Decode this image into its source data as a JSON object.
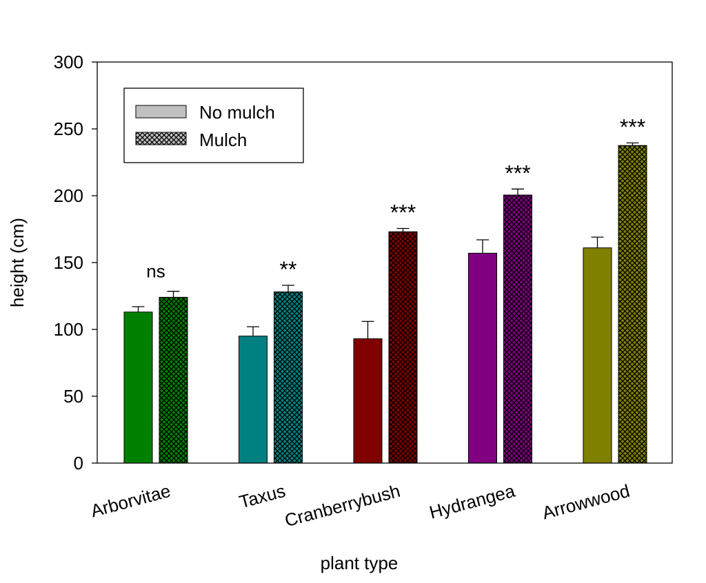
{
  "chart_data": {
    "type": "bar",
    "title": "",
    "xlabel": "plant type",
    "ylabel": "height (cm)",
    "ylim": [
      0,
      300
    ],
    "yticks": [
      0,
      50,
      100,
      150,
      200,
      250,
      300
    ],
    "categories": [
      "Arborvitae",
      "Taxus",
      "Cranberrybush",
      "Hydrangea",
      "Arrowwood"
    ],
    "colors": [
      "#008000",
      "#008080",
      "#800000",
      "#800080",
      "#808000"
    ],
    "series": [
      {
        "name": "No mulch",
        "pattern": "solid",
        "values": [
          113,
          95,
          93,
          157,
          161
        ],
        "errors": [
          4,
          7,
          13,
          10,
          8
        ]
      },
      {
        "name": "Mulch",
        "pattern": "crosshatch",
        "values": [
          124,
          128,
          173,
          200.5,
          237.5
        ],
        "errors": [
          4.5,
          5,
          2.5,
          4.5,
          2
        ]
      }
    ],
    "significance": [
      "ns",
      "**",
      "***",
      "***",
      "***"
    ],
    "legend": {
      "placement": "top-left",
      "entries": [
        "No mulch",
        "Mulch"
      ]
    },
    "grid": false
  }
}
